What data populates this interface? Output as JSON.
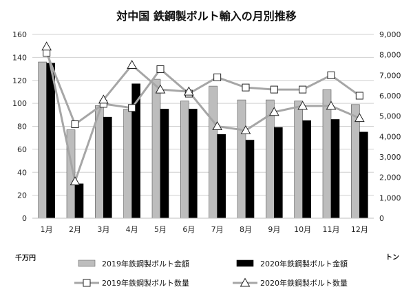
{
  "chart_data": {
    "type": "bar",
    "title": "対中国 鉄鋼製ボルト輸入の月別推移",
    "categories": [
      "1月",
      "2月",
      "3月",
      "4月",
      "5月",
      "6月",
      "7月",
      "8月",
      "9月",
      "10月",
      "11月",
      "12月"
    ],
    "left_axis": {
      "unit": "千万円",
      "ylim": [
        0,
        160
      ],
      "ticks": [
        0,
        20,
        40,
        60,
        80,
        100,
        120,
        140,
        160
      ]
    },
    "right_axis": {
      "unit": "トン",
      "ylim": [
        0,
        9000
      ],
      "ticks": [
        0,
        1000,
        2000,
        3000,
        4000,
        5000,
        6000,
        7000,
        8000,
        9000
      ]
    },
    "right_tick_labels": [
      "0",
      "1,000",
      "2,000",
      "3,000",
      "4,000",
      "5,000",
      "6,000",
      "7,000",
      "8,000",
      "9,000"
    ],
    "grid": true,
    "legend_position": "bottom",
    "bar_series": [
      {
        "name": "2019年鉄鋼製ボルト金額",
        "color": "#bdbdbd",
        "axis": "left",
        "values": [
          136,
          77,
          98,
          95,
          121,
          102,
          115,
          103,
          103,
          102,
          112,
          99
        ]
      },
      {
        "name": "2020年鉄鋼製ボルト金額",
        "color": "#000000",
        "axis": "left",
        "values": [
          135,
          30,
          88,
          117,
          95,
          95,
          73,
          68,
          79,
          85,
          86,
          75
        ]
      }
    ],
    "line_series": [
      {
        "name": "2019年鉄鋼製ボルト数量",
        "color": "#a6a6a6",
        "marker": "square",
        "axis": "right",
        "values": [
          8100,
          4600,
          5600,
          5400,
          7300,
          6100,
          6900,
          6400,
          6300,
          6300,
          7000,
          6000
        ]
      },
      {
        "name": "2020年鉄鋼製ボルト数量",
        "color": "#a6a6a6",
        "marker": "triangle",
        "axis": "right",
        "values": [
          8400,
          1800,
          5800,
          7500,
          6300,
          6200,
          4500,
          4300,
          5200,
          5500,
          5500,
          4900
        ]
      }
    ]
  }
}
